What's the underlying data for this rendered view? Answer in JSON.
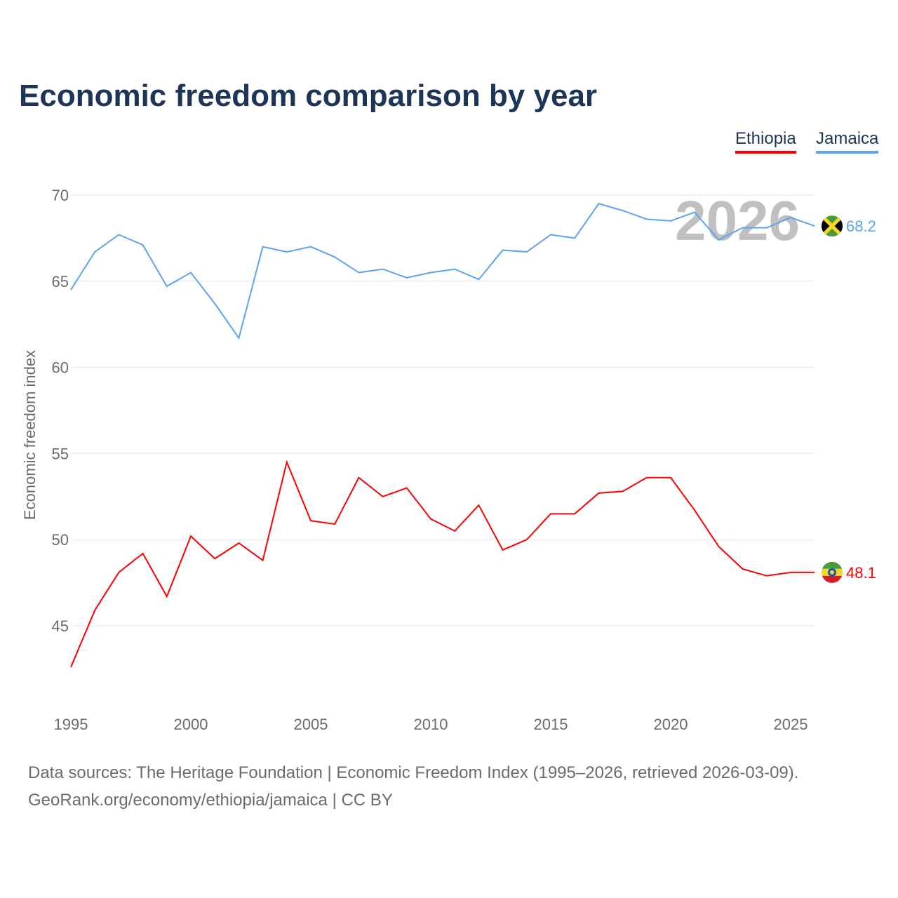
{
  "chart_data": {
    "type": "line",
    "title": "Economic freedom comparison by year",
    "xlabel": "",
    "ylabel": "Economic freedom index",
    "watermark_year": "2026",
    "x": [
      1995,
      1996,
      1997,
      1998,
      1999,
      2000,
      2001,
      2002,
      2003,
      2004,
      2005,
      2006,
      2007,
      2008,
      2009,
      2010,
      2011,
      2012,
      2013,
      2014,
      2015,
      2016,
      2017,
      2018,
      2019,
      2020,
      2021,
      2022,
      2023,
      2024,
      2025,
      2026
    ],
    "xticks": [
      "1995",
      "2000",
      "2005",
      "2010",
      "2015",
      "2020",
      "2025"
    ],
    "yticks": [
      "45",
      "50",
      "55",
      "60",
      "65",
      "70"
    ],
    "xlim": [
      1995,
      2026
    ],
    "ylim": [
      41,
      71
    ],
    "grid": true,
    "legend_position": "top-right",
    "series": [
      {
        "name": "Ethiopia",
        "color": "#ff0000",
        "last_label": "48.1",
        "values": [
          42.6,
          45.9,
          48.1,
          49.2,
          46.7,
          50.2,
          48.9,
          49.8,
          48.8,
          54.5,
          51.1,
          50.9,
          53.6,
          52.5,
          53.0,
          51.2,
          50.5,
          52.0,
          49.4,
          50.0,
          51.5,
          51.5,
          52.7,
          52.8,
          53.6,
          53.6,
          51.7,
          49.6,
          48.3,
          47.9,
          48.1,
          48.1
        ]
      },
      {
        "name": "Jamaica",
        "color": "#5aa4f0",
        "last_label": "68.2",
        "values": [
          64.5,
          66.7,
          67.7,
          67.1,
          64.7,
          65.5,
          63.7,
          61.7,
          67.0,
          66.7,
          67.0,
          66.4,
          65.5,
          65.7,
          65.2,
          65.5,
          65.7,
          65.1,
          66.8,
          66.7,
          67.7,
          67.5,
          69.5,
          69.1,
          68.6,
          68.5,
          69.0,
          67.4,
          68.1,
          68.1,
          68.7,
          68.2
        ]
      }
    ]
  },
  "footer": {
    "line1": "Data sources: The Heritage Foundation | Economic Freedom Index (1995–2026, retrieved 2026-03-09).",
    "line2": "GeoRank.org/economy/ethiopia/jamaica | CC BY"
  }
}
